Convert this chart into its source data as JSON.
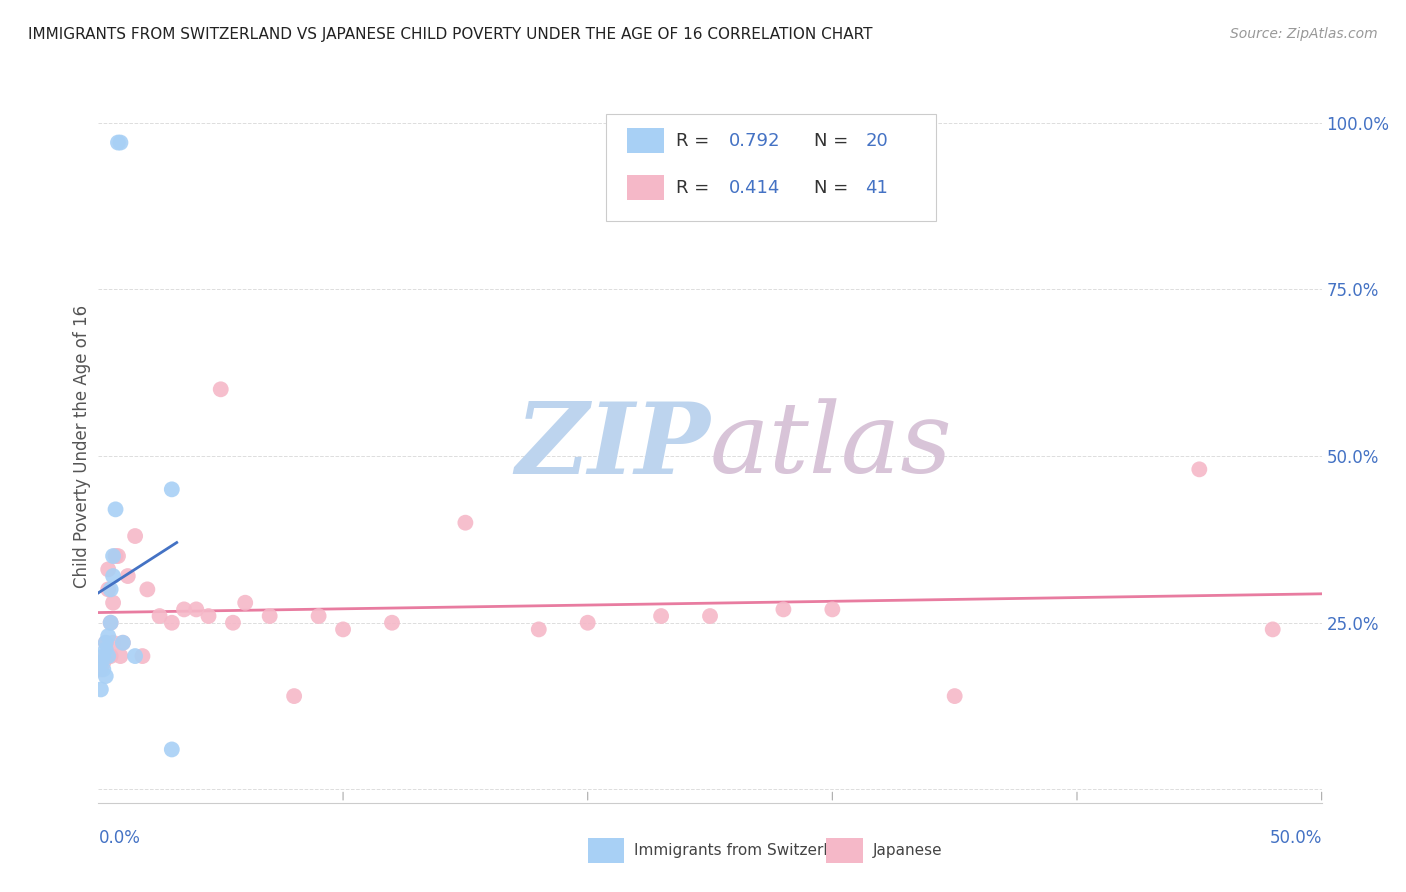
{
  "title": "IMMIGRANTS FROM SWITZERLAND VS JAPANESE CHILD POVERTY UNDER THE AGE OF 16 CORRELATION CHART",
  "source": "Source: ZipAtlas.com",
  "ylabel": "Child Poverty Under the Age of 16",
  "xlim": [
    0.0,
    0.5
  ],
  "ylim": [
    -0.02,
    1.05
  ],
  "legend_r1": "R = 0.792",
  "legend_n1": "N = 20",
  "legend_r2": "R = 0.414",
  "legend_n2": "N = 41",
  "legend_label1": "Immigrants from Switzerland",
  "legend_label2": "Japanese",
  "blue_color": "#a8d0f5",
  "pink_color": "#f5b8c8",
  "blue_line_color": "#4472c4",
  "pink_line_color": "#e87ca0",
  "label_color": "#4472c4",
  "watermark_zip": "ZIP",
  "watermark_atlas": "atlas",
  "watermark_color_zip": "#c8d8ee",
  "watermark_color_atlas": "#d8c8d8",
  "swiss_x": [
    0.001,
    0.001,
    0.002,
    0.002,
    0.003,
    0.003,
    0.003,
    0.004,
    0.004,
    0.005,
    0.005,
    0.006,
    0.006,
    0.007,
    0.008,
    0.009,
    0.01,
    0.03,
    0.03,
    0.015
  ],
  "swiss_y": [
    0.19,
    0.15,
    0.2,
    0.18,
    0.22,
    0.17,
    0.21,
    0.23,
    0.2,
    0.3,
    0.25,
    0.32,
    0.35,
    0.42,
    0.97,
    0.97,
    0.22,
    0.45,
    0.06,
    0.2
  ],
  "japan_x": [
    0.001,
    0.002,
    0.003,
    0.003,
    0.004,
    0.004,
    0.005,
    0.005,
    0.006,
    0.006,
    0.007,
    0.008,
    0.009,
    0.01,
    0.012,
    0.015,
    0.018,
    0.02,
    0.025,
    0.03,
    0.035,
    0.04,
    0.045,
    0.05,
    0.055,
    0.06,
    0.07,
    0.08,
    0.09,
    0.1,
    0.12,
    0.15,
    0.18,
    0.2,
    0.23,
    0.25,
    0.28,
    0.3,
    0.35,
    0.45,
    0.48
  ],
  "japan_y": [
    0.18,
    0.19,
    0.2,
    0.22,
    0.3,
    0.33,
    0.2,
    0.25,
    0.22,
    0.28,
    0.35,
    0.35,
    0.2,
    0.22,
    0.32,
    0.38,
    0.2,
    0.3,
    0.26,
    0.25,
    0.27,
    0.27,
    0.26,
    0.6,
    0.25,
    0.28,
    0.26,
    0.14,
    0.26,
    0.24,
    0.25,
    0.4,
    0.24,
    0.25,
    0.26,
    0.26,
    0.27,
    0.27,
    0.14,
    0.48,
    0.24
  ]
}
